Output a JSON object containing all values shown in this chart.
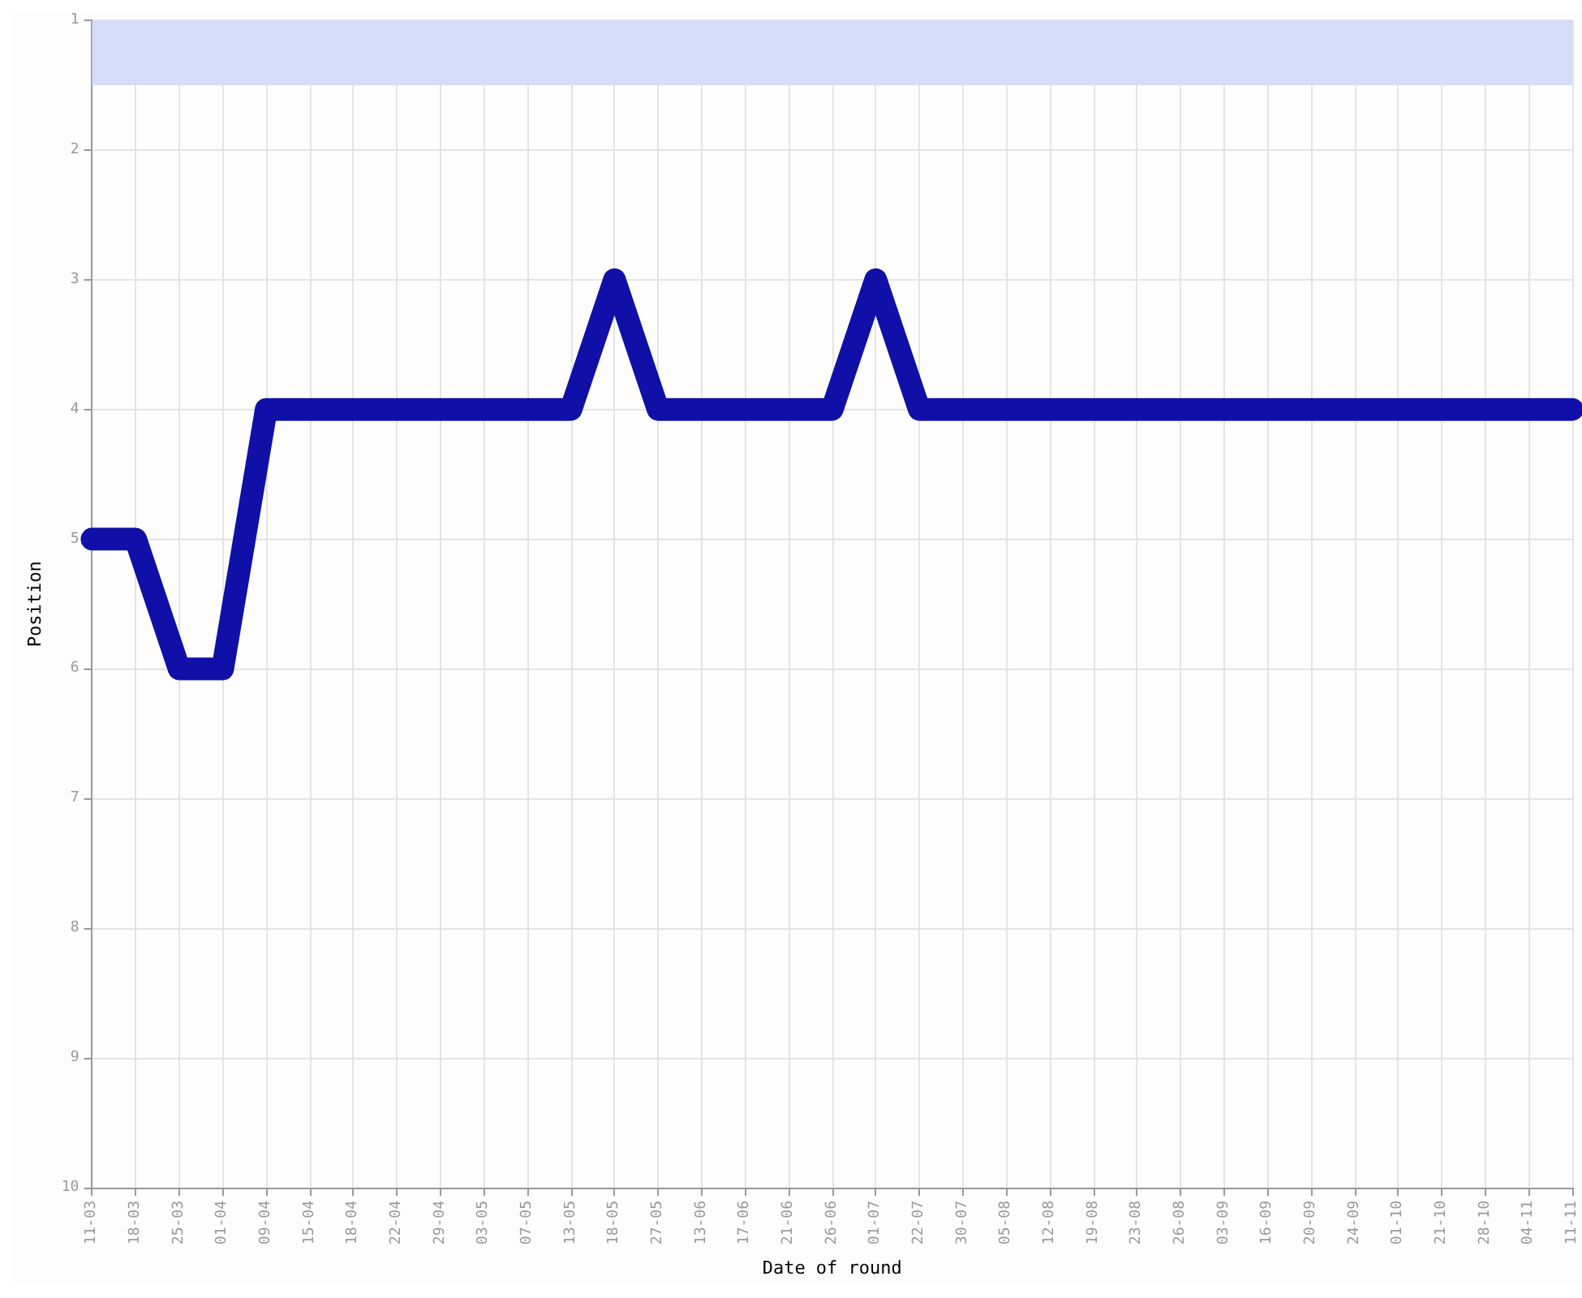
{
  "chart_data": {
    "type": "line",
    "xlabel": "Date of round",
    "ylabel": "Position",
    "categories": [
      "11-03",
      "18-03",
      "25-03",
      "01-04",
      "09-04",
      "15-04",
      "18-04",
      "22-04",
      "29-04",
      "03-05",
      "07-05",
      "13-05",
      "18-05",
      "27-05",
      "13-06",
      "17-06",
      "21-06",
      "26-06",
      "01-07",
      "22-07",
      "30-07",
      "05-08",
      "12-08",
      "19-08",
      "23-08",
      "26-08",
      "03-09",
      "16-09",
      "20-09",
      "24-09",
      "01-10",
      "21-10",
      "28-10",
      "04-11",
      "11-11"
    ],
    "series": [
      {
        "color": "#1010a8",
        "values": [
          5,
          5,
          6,
          6,
          4,
          4,
          4,
          4,
          4,
          4,
          4,
          4,
          3,
          4,
          4,
          4,
          4,
          4,
          3,
          4,
          4,
          4,
          4,
          4,
          4,
          4,
          4,
          4,
          4,
          4,
          4,
          4,
          4,
          4,
          4
        ]
      }
    ],
    "ylim": [
      10,
      1
    ],
    "yticks": [
      1,
      2,
      3,
      4,
      5,
      6,
      7,
      8,
      9,
      10
    ],
    "bands": [
      {
        "axis": "y",
        "from": 1,
        "to": 1.5,
        "color": "#d5dcf8"
      }
    ],
    "grid": true,
    "line_style": "solid"
  }
}
